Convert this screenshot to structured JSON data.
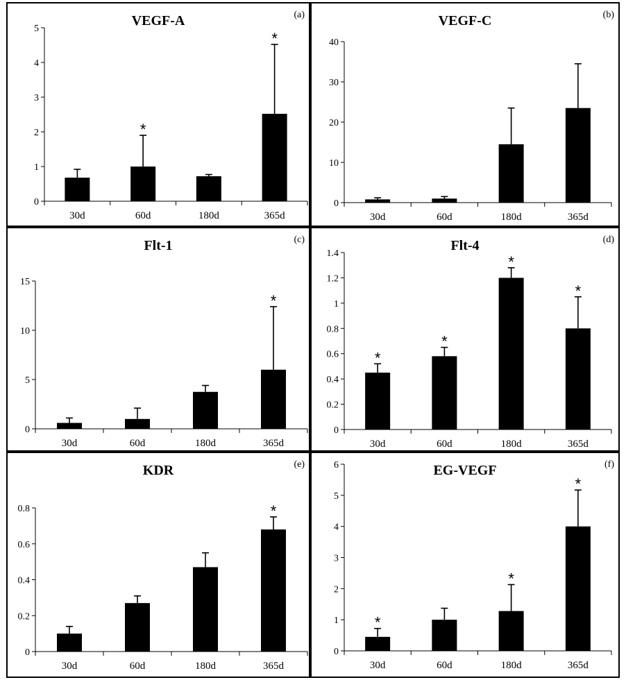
{
  "chart_data": [
    {
      "type": "bar",
      "panel_label": "(a)",
      "title": "VEGF-A",
      "categories": [
        "30d",
        "60d",
        "180d",
        "365d"
      ],
      "values": [
        0.68,
        1.0,
        0.72,
        2.52
      ],
      "errors": [
        0.24,
        0.9,
        0.05,
        2.0
      ],
      "significant": [
        false,
        true,
        false,
        true
      ],
      "significance_marker": "*",
      "ylim": [
        0,
        5
      ],
      "yticks": [
        "0",
        "1",
        "2",
        "3",
        "4",
        "5"
      ],
      "ytick_values": [
        0,
        1,
        2,
        3,
        4,
        5
      ],
      "xlabel": "",
      "ylabel": ""
    },
    {
      "type": "bar",
      "panel_label": "(b)",
      "title": "VEGF-C",
      "categories": [
        "30d",
        "60d",
        "180d",
        "365d"
      ],
      "values": [
        0.8,
        1.0,
        14.5,
        23.5
      ],
      "errors": [
        0.4,
        0.5,
        9.0,
        11.0
      ],
      "significant": [
        false,
        false,
        false,
        false
      ],
      "significance_marker": "*",
      "ylim": [
        0,
        40
      ],
      "yticks": [
        "0",
        "10",
        "20",
        "30",
        "40"
      ],
      "ytick_values": [
        0,
        10,
        20,
        30,
        40
      ],
      "xlabel": "",
      "ylabel": ""
    },
    {
      "type": "bar",
      "panel_label": "(c)",
      "title": "Flt-1",
      "categories": [
        "30d",
        "60d",
        "180d",
        "365d"
      ],
      "values": [
        0.6,
        1.0,
        3.75,
        6.0
      ],
      "errors": [
        0.5,
        1.1,
        0.65,
        6.4
      ],
      "significant": [
        false,
        false,
        false,
        true
      ],
      "significance_marker": "*",
      "ylim": [
        0,
        15
      ],
      "yticks": [
        "0",
        "5",
        "10",
        "15"
      ],
      "ytick_values": [
        0,
        5,
        10,
        15
      ],
      "xlabel": "",
      "ylabel": ""
    },
    {
      "type": "bar",
      "panel_label": "(d)",
      "title": "Flt-4",
      "categories": [
        "30d",
        "60d",
        "180d",
        "365d"
      ],
      "values": [
        0.45,
        0.58,
        1.2,
        0.8
      ],
      "errors": [
        0.07,
        0.07,
        0.08,
        0.25
      ],
      "significant": [
        true,
        true,
        true,
        true
      ],
      "significance_marker": "*",
      "ylim": [
        0,
        1.4
      ],
      "yticks": [
        "0",
        "0.2",
        "0.4",
        "0.6",
        "0.8",
        "1",
        "1.2",
        "1.4"
      ],
      "ytick_values": [
        0,
        0.2,
        0.4,
        0.6,
        0.8,
        1,
        1.2,
        1.4
      ],
      "xlabel": "",
      "ylabel": ""
    },
    {
      "type": "bar",
      "panel_label": "(e)",
      "title": "KDR",
      "categories": [
        "30d",
        "60d",
        "180d",
        "365d"
      ],
      "values": [
        0.1,
        0.27,
        0.47,
        0.68
      ],
      "errors": [
        0.04,
        0.04,
        0.08,
        0.07
      ],
      "significant": [
        false,
        false,
        false,
        true
      ],
      "significance_marker": "*",
      "ylim": [
        0,
        0.8
      ],
      "yticks": [
        "0",
        "0.2",
        "0.4",
        "0.6",
        "0.8"
      ],
      "ytick_values": [
        0,
        0.2,
        0.4,
        0.6,
        0.8
      ],
      "xlabel": "",
      "ylabel": ""
    },
    {
      "type": "bar",
      "panel_label": "(f)",
      "title": "EG-VEGF",
      "categories": [
        "30d",
        "60d",
        "180d",
        "365d"
      ],
      "values": [
        0.45,
        1.0,
        1.28,
        4.0
      ],
      "errors": [
        0.27,
        0.37,
        0.85,
        1.17
      ],
      "significant": [
        true,
        false,
        true,
        true
      ],
      "significance_marker": "*",
      "ylim": [
        0,
        6
      ],
      "yticks": [
        "0",
        "1",
        "2",
        "3",
        "4",
        "5",
        "6"
      ],
      "ytick_values": [
        0,
        1,
        2,
        3,
        4,
        5,
        6
      ],
      "xlabel": "",
      "ylabel": ""
    }
  ],
  "colors": {
    "bar": "#000000",
    "axis": "#000000",
    "frame": "#000000",
    "background": "#ffffff"
  }
}
